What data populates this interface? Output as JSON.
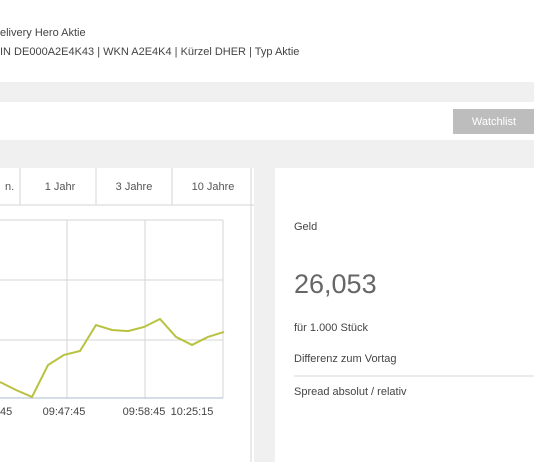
{
  "header": {
    "title": "elivery Hero Aktie",
    "meta": "IN DE000A2E4K43 | WKN A2E4K4 | Kürzel DHER | Typ Aktie"
  },
  "toolbar": {
    "button": "Watchlist"
  },
  "tabs": [
    "n.",
    "1 Jahr",
    "3 Jahre",
    "10 Jahre"
  ],
  "chart_data": {
    "type": "line",
    "categories": [
      "45",
      null,
      null,
      null,
      "09:47:45",
      null,
      null,
      null,
      null,
      "09:58:45",
      null,
      null,
      "10:25:15",
      null,
      null
    ],
    "values": [
      9,
      4.5,
      0.6,
      18.5,
      24.2,
      26.4,
      41,
      38.2,
      37.6,
      39.9,
      44.4,
      34.3,
      29.8,
      34.3,
      37.1
    ],
    "color": "#b9c23f",
    "ylim": [
      0,
      100
    ]
  },
  "quote": {
    "label": "Geld",
    "value": "26,053",
    "unit": "für 1.000 Stück",
    "rows": [
      "Differenz zum Vortag",
      "Spread absolut / relativ"
    ]
  }
}
